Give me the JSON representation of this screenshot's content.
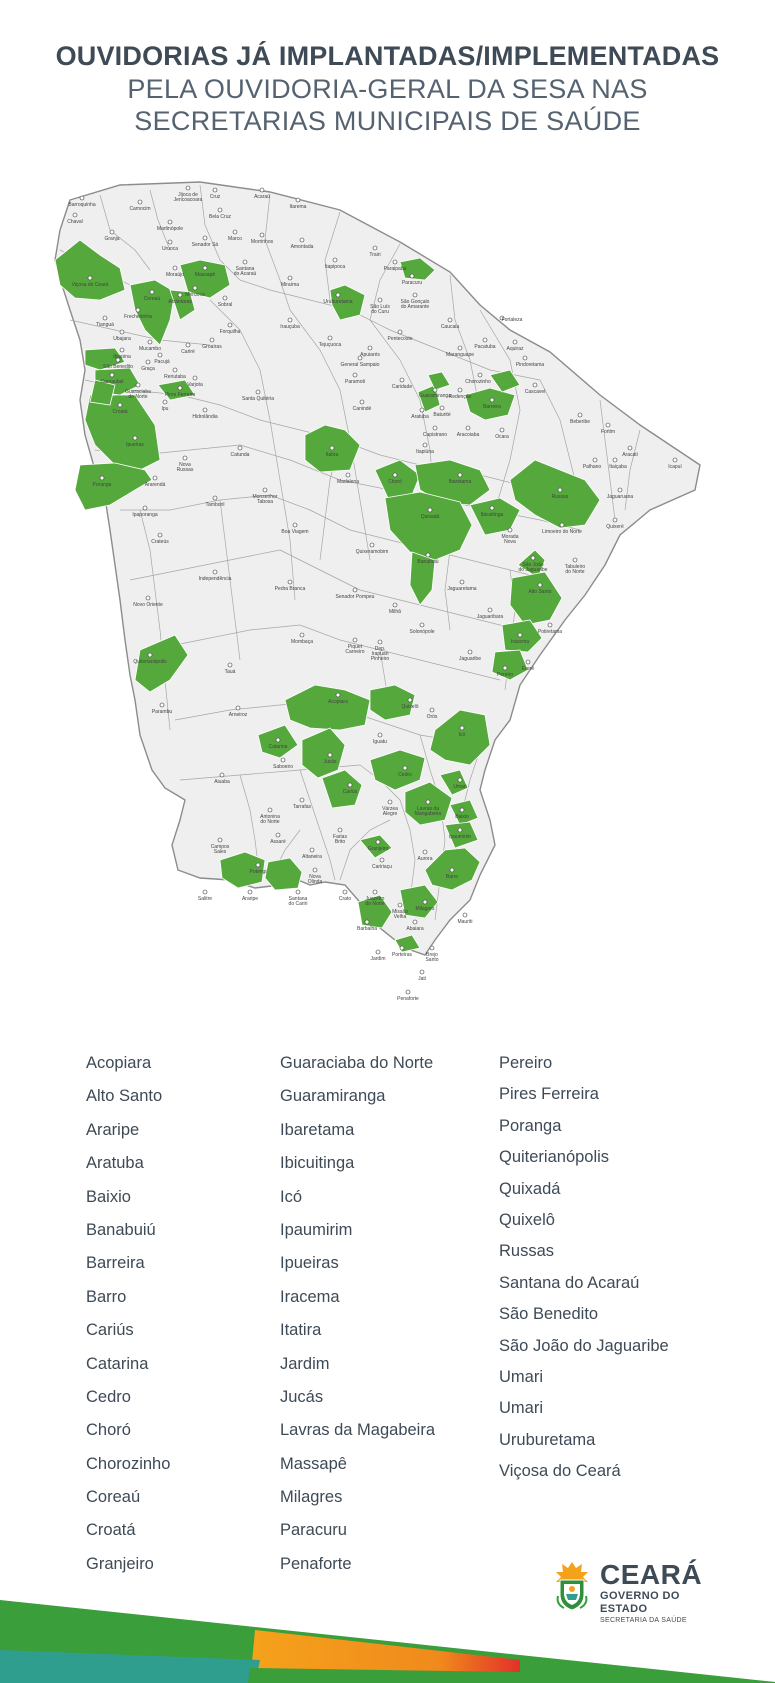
{
  "header": {
    "title_line1": "OUVIDORIAS JÁ IMPLANTADAS/IMPLEMENTADAS",
    "title_line2": "PELA OUVIDORIA-GERAL DA SESA NAS",
    "title_line3": "SECRETARIAS MUNICIPAIS DE SAÚDE"
  },
  "colors": {
    "implemented": "#55a83c",
    "not_implemented": "#efefef",
    "border": "#9a9a9a",
    "text": "#3e4a56",
    "stripe_green": "#3a9e3a",
    "stripe_orange": "#f5a21b",
    "stripe_red": "#e2312a",
    "stripe_teal": "#2f9e8f"
  },
  "map": {
    "region": "Ceará",
    "city_labels": [
      "Barroquinha",
      "Camocim",
      "Jijoca de Jericoacoara",
      "Cruz",
      "Acaraú",
      "Itarema",
      "Chaval",
      "Granja",
      "Martinópole",
      "Bela Cruz",
      "Uruoca",
      "Senador Sá",
      "Marco",
      "Morrinhos",
      "Amontada",
      "Trairi",
      "Viçosa do Ceará",
      "Moraújo",
      "Santana do Acaraú",
      "Miraíma",
      "Itapipoca",
      "Paraipaba",
      "Coreaú",
      "Massapê",
      "Frecheirinha",
      "Alcântaras",
      "Sobral",
      "Tianguá",
      "Ubajara",
      "Forquilha",
      "Irauçuba",
      "Uruburetama",
      "São Luís do Curu",
      "São Gonçalo do Amarante",
      "Caucaia",
      "Fortaleza",
      "Pentecoste",
      "Tejuçuoca",
      "Apuiarés",
      "Ibiapina",
      "Mucambo",
      "Cariré",
      "Groaíras",
      "São Benedito",
      "Graça",
      "Pacujá",
      "Reriutaba",
      "Carnaubal",
      "Guaraciaba do Norte",
      "Varjota",
      "Pires Ferreira",
      "Croatá",
      "Ipu",
      "Hidrolândia",
      "Santa Quitéria",
      "Ipueiras",
      "Canindé",
      "Caridade",
      "Paramoti",
      "General Sampaio",
      "Maranguape",
      "Pacatuba",
      "Aquiraz",
      "Pindoretama",
      "Guaramiranga",
      "Baturité",
      "Aratuba",
      "Redenção",
      "Chorozinho",
      "Barreira",
      "Cascavel",
      "Beberibe",
      "Capistrano",
      "Aracoiaba",
      "Ocara",
      "Itapiúna",
      "Itatira",
      "Nova Russas",
      "Poranga",
      "Ararendá",
      "Catunda",
      "Tamboril",
      "Monsenhor Tabosa",
      "Ipaporanga",
      "Madalena",
      "Choró",
      "Ibaretama",
      "Quixadá",
      "Ibicuitinga",
      "Russas",
      "Jaguaruana",
      "Fortim",
      "Aracati",
      "Icapuí",
      "Palhano",
      "Itaiçaba",
      "Quixeré",
      "Crateús",
      "Boa Viagem",
      "Quixeramobim",
      "Banabuiú",
      "Morada Nova",
      "Limoeiro do Norte",
      "São João do Jaguaribe",
      "Tabuleiro do Norte",
      "Independência",
      "Pedra Branca",
      "Senador Pompeu",
      "Jaguaretama",
      "Alto Santo",
      "Novo Oriente",
      "Milhã",
      "Solonópole",
      "Jaguaribara",
      "Potiretama",
      "Quiterianópolis",
      "Mombaça",
      "Piquet Carneiro",
      "Deputado Irapuan Pinheiro",
      "Jaguaribe",
      "Iracema",
      "Tauá",
      "Pereiro",
      "Ererê",
      "Acopiara",
      "Quixelô",
      "Orós",
      "Parambu",
      "Arneiroz",
      "Catarina",
      "Iguatu",
      "Icó",
      "Saboeiro",
      "Jucás",
      "Cedro",
      "Aiuaba",
      "Cariús",
      "Umari",
      "Antonina do Norte",
      "Tarrafas",
      "Várzea Alegre",
      "Lavras da Mangabeira",
      "Baixio",
      "Ipaumirim",
      "Campos Sales",
      "Assaré",
      "Farias Brito",
      "Granjeiro",
      "Caririaçu",
      "Aurora",
      "Potengi",
      "Altaneira",
      "Nova Olinda",
      "Barro",
      "Salitre",
      "Araripe",
      "Santana do Cariri",
      "Crato",
      "Juazeiro do Norte",
      "Missão Velha",
      "Milagres",
      "Mauriti",
      "Barbalha",
      "Abaiara",
      "Jardim",
      "Porteiras",
      "Brejo Santo",
      "Jati",
      "Penaforte"
    ]
  },
  "municipalities": {
    "column1": [
      "Acopiara",
      "Alto Santo",
      "Araripe",
      "Aratuba",
      "Baixio",
      "Banabuiú",
      "Barreira",
      "Barro",
      "Cariús",
      "Catarina",
      "Cedro",
      "Choró",
      "Chorozinho",
      "Coreaú",
      "Croatá",
      "Granjeiro"
    ],
    "column2": [
      "Guaraciaba do Norte",
      "Guaramiranga",
      "Ibaretama",
      "Ibicuitinga",
      "Icó",
      "Ipaumirim",
      "Ipueiras",
      "Iracema",
      "Itatira",
      "Jardim",
      "Jucás",
      "Lavras da Magabeira",
      "Massapê",
      "Milagres",
      "Paracuru",
      "Penaforte"
    ],
    "column3": [
      "Pereiro",
      "Pires Ferreira",
      "Poranga",
      "Quiterianópolis",
      "Quixadá",
      "Quixelô",
      "Russas",
      "Santana do Acaraú",
      "São Benedito",
      "São João do Jaguaribe",
      "Umari",
      "Umari",
      "Uruburetama",
      "Viçosa do Ceará"
    ]
  },
  "logo": {
    "name": "CEARÁ",
    "subtitle": "GOVERNO DO ESTADO",
    "secretaria": "SECRETARIA DA SAÚDE",
    "icon": "ceara-coat-of-arms-icon"
  }
}
